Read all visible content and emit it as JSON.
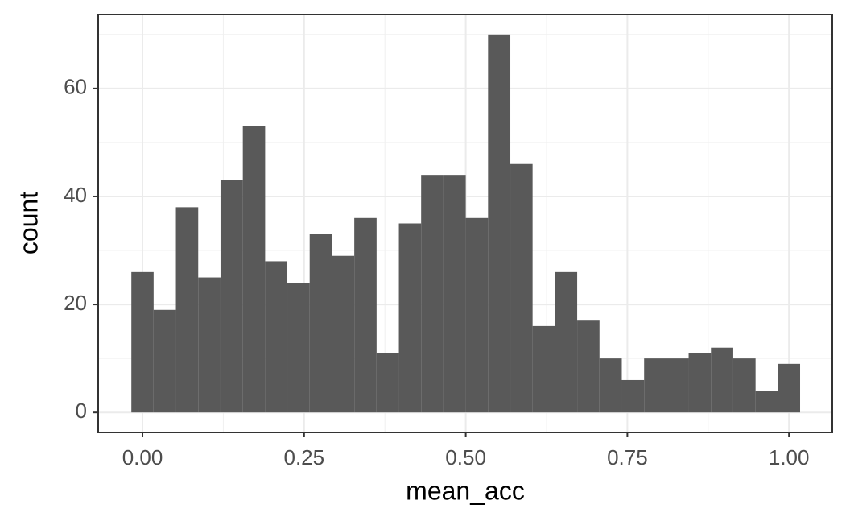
{
  "chart_data": {
    "type": "histogram",
    "x_label": "mean_acc",
    "y_label": "count",
    "bins": [
      -0.0172,
      0.0172,
      0.0517,
      0.0862,
      0.1207,
      0.1552,
      0.1897,
      0.2241,
      0.2586,
      0.2931,
      0.3276,
      0.3621,
      0.3966,
      0.431,
      0.4655,
      0.5,
      0.5345,
      0.569,
      0.6034,
      0.6379,
      0.6724,
      0.7069,
      0.7414,
      0.7759,
      0.8103,
      0.8448,
      0.8793,
      0.9138,
      0.9483,
      0.9828,
      1.0172
    ],
    "values": [
      26,
      19,
      38,
      25,
      43,
      53,
      28,
      24,
      33,
      29,
      36,
      11,
      35,
      44,
      44,
      36,
      70,
      46,
      16,
      26,
      17,
      10,
      6,
      10,
      10,
      11,
      12,
      10,
      4,
      9
    ],
    "color": "#595959",
    "xlim": [
      -0.0685,
      1.067
    ],
    "ylim": [
      -3.7,
      73.7
    ],
    "xticks": [
      {
        "value": 0,
        "label": "0.00"
      },
      {
        "value": 0.25,
        "label": "0.25"
      },
      {
        "value": 0.5,
        "label": "0.50"
      },
      {
        "value": 0.75,
        "label": "0.75"
      },
      {
        "value": 1,
        "label": "1.00"
      }
    ],
    "yticks": [
      0,
      20,
      40,
      60
    ],
    "x_minor_grid": [
      0.125,
      0.375,
      0.625,
      0.875
    ],
    "y_minor_grid": [
      10,
      30,
      50,
      70
    ],
    "grid": true
  }
}
